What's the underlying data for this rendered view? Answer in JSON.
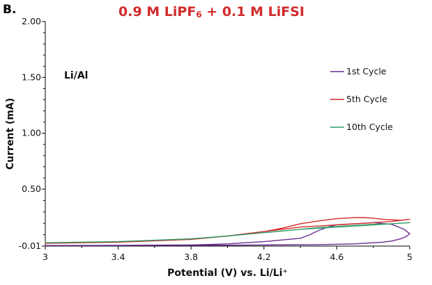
{
  "panel_label": "B.",
  "title_parts": {
    "pre": "0.9 M LiPF",
    "sub": "6",
    "post": " + 0.1 M LiFSI"
  },
  "annotation": "Li/Al",
  "chart_data": {
    "type": "line",
    "title": "0.9 M LiPF6 + 0.1 M LiFSI",
    "xlabel": "Potential (V) vs. Li/Li⁺",
    "ylabel": "Current (mA)",
    "xlim": [
      3,
      5
    ],
    "ylim": [
      -0.01,
      2.0
    ],
    "xticks": [
      3,
      3.4,
      3.8,
      4.2,
      4.6,
      5
    ],
    "xtick_labels": [
      "3",
      "3.4",
      "3.8",
      "4.2",
      "4.6",
      "5"
    ],
    "yticks": [
      -0.01,
      0.5,
      1.0,
      1.5,
      2.0
    ],
    "ytick_labels": [
      "-0.01",
      "0.50",
      "1.00",
      "1.50",
      "2.00"
    ],
    "grid": false,
    "legend_position": "right",
    "series": [
      {
        "name": "1st Cycle",
        "color": "#6a2d91",
        "x": [
          3.0,
          3.4,
          3.8,
          4.0,
          4.2,
          4.3,
          4.4,
          4.45,
          4.5,
          4.55,
          4.6,
          4.7,
          4.8,
          4.9,
          4.97,
          5.0,
          4.98,
          4.95,
          4.9,
          4.85,
          4.8,
          4.7,
          4.5,
          4.2,
          3.8,
          3.4,
          3.0
        ],
        "y": [
          -0.005,
          -0.003,
          0.0,
          0.01,
          0.03,
          0.045,
          0.06,
          0.09,
          0.13,
          0.16,
          0.18,
          0.19,
          0.2,
          0.185,
          0.14,
          0.1,
          0.075,
          0.055,
          0.035,
          0.025,
          0.02,
          0.01,
          0.003,
          0.0,
          -0.003,
          -0.005,
          -0.005
        ]
      },
      {
        "name": "5th Cycle",
        "color": "#d42a2a",
        "x": [
          3.0,
          3.4,
          3.8,
          4.0,
          4.2,
          4.3,
          4.4,
          4.5,
          4.6,
          4.7,
          4.75,
          4.8,
          4.85,
          4.9,
          4.95,
          5.0,
          4.9,
          4.8,
          4.7,
          4.6,
          4.5,
          4.4,
          4.3,
          4.2,
          4.0,
          3.8,
          3.4,
          3.0
        ],
        "y": [
          0.015,
          0.025,
          0.05,
          0.08,
          0.12,
          0.15,
          0.19,
          0.215,
          0.235,
          0.245,
          0.245,
          0.24,
          0.23,
          0.225,
          0.22,
          0.23,
          0.21,
          0.2,
          0.19,
          0.18,
          0.17,
          0.16,
          0.14,
          0.12,
          0.08,
          0.05,
          0.025,
          0.015
        ]
      },
      {
        "name": "10th Cycle",
        "color": "#2e9b68",
        "x": [
          3.0,
          3.4,
          3.8,
          4.0,
          4.2,
          4.3,
          4.4,
          4.5,
          4.6,
          4.7,
          4.8,
          4.9,
          5.0,
          4.9,
          4.8,
          4.6,
          4.4,
          4.2,
          4.0,
          3.8,
          3.4,
          3.0
        ],
        "y": [
          0.02,
          0.03,
          0.055,
          0.08,
          0.11,
          0.125,
          0.14,
          0.155,
          0.165,
          0.175,
          0.185,
          0.19,
          0.2,
          0.19,
          0.18,
          0.16,
          0.14,
          0.11,
          0.08,
          0.055,
          0.03,
          0.02
        ]
      }
    ]
  }
}
